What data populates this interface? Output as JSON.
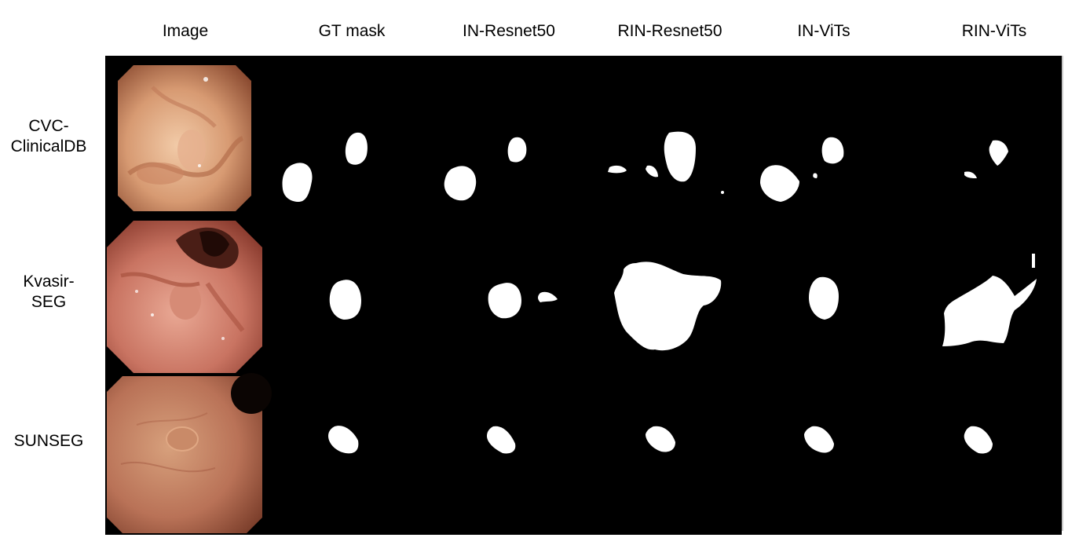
{
  "columns": [
    "Image",
    "GT mask",
    "IN-Resnet50",
    "RIN-Resnet50",
    "IN-ViTs",
    "RIN-ViTs"
  ],
  "rows": [
    {
      "label_line1": "CVC-",
      "label_line2": "ClinicalDB"
    },
    {
      "label_line1": "Kvasir-",
      "label_line2": "SEG"
    },
    {
      "label_line1": "SUNSEG",
      "label_line2": ""
    }
  ],
  "colors": {
    "panel_background": "#000000",
    "mask_foreground": "#ffffff",
    "tissue_light": "#e7b79a",
    "tissue_mid": "#c9806a",
    "tissue_dark": "#8a3d2c"
  }
}
